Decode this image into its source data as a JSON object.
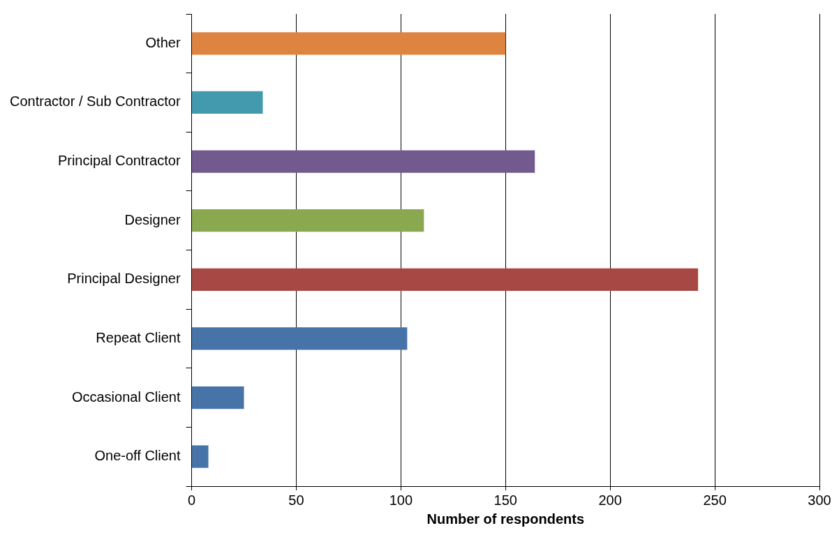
{
  "chart_data": {
    "type": "bar",
    "orientation": "horizontal",
    "xlabel": "Number of respondents",
    "categories": [
      "Other",
      "Contractor / Sub Contractor",
      "Principal Contractor",
      "Designer",
      "Principal Designer",
      "Repeat Client",
      "Occasional Client",
      "One-off Client"
    ],
    "values": [
      150,
      34,
      164,
      111,
      242,
      103,
      25,
      8
    ],
    "colors": [
      "#dd8540",
      "#4399ae",
      "#735a8e",
      "#8aa84f",
      "#a84845",
      "#4673a8",
      "#4673a8",
      "#4673a8"
    ],
    "xlim": [
      0,
      300
    ],
    "xticks": [
      0,
      50,
      100,
      150,
      200,
      250,
      300
    ],
    "grid": "x",
    "legend": false
  }
}
